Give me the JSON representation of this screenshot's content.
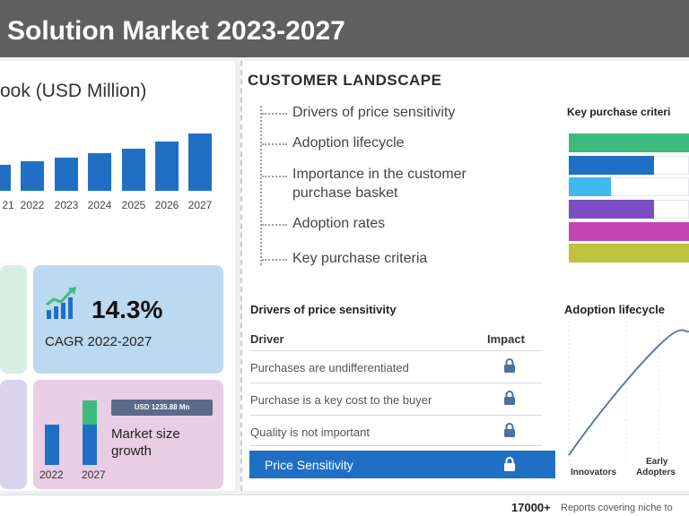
{
  "header": {
    "title": "Solution Market 2023-2027"
  },
  "outlook": {
    "title": "ook (USD Million)",
    "years": [
      "21",
      "2022",
      "2023",
      "2024",
      "2025",
      "2026",
      "2027"
    ],
    "relative_values": [
      0.46,
      0.52,
      0.58,
      0.66,
      0.74,
      0.86,
      1.0
    ]
  },
  "cagr": {
    "value": "14.3%",
    "label": "CAGR 2022-2027"
  },
  "growth": {
    "tag": "USD 1235.88 Mn",
    "label": "Market size growth",
    "years": [
      "2022",
      "2027"
    ],
    "base_2022": 0.62,
    "base_2027": 0.62,
    "increment_2027": 0.38
  },
  "customer_landscape": {
    "title": "CUSTOMER LANDSCAPE",
    "items": [
      "Drivers of price sensitivity",
      "Adoption lifecycle",
      "Importance in the customer purchase basket",
      "Adoption rates",
      "Key purchase criteria"
    ]
  },
  "key_purchase": {
    "title": "Key purchase criteri",
    "bars": [
      {
        "color": "#3dbb7c",
        "value": 1.0
      },
      {
        "color": "#1f6fc5",
        "value": 0.71
      },
      {
        "color": "#3fb9f0",
        "value": 0.35
      },
      {
        "color": "#7a4fc4",
        "value": 0.71
      },
      {
        "color": "#c545b3",
        "value": 1.0
      },
      {
        "color": "#bfc23c",
        "value": 1.0
      }
    ]
  },
  "drivers": {
    "title": "Drivers of price sensitivity",
    "col_driver": "Driver",
    "col_impact": "Impact",
    "rows": [
      "Purchases are undifferentiated",
      "Purchase is a key cost to the buyer",
      "Quality is not important"
    ],
    "highlight": "Price Sensitivity"
  },
  "adoption": {
    "title": "Adoption lifecycle",
    "labels": [
      "Innovators",
      "Early Adopters"
    ]
  },
  "footer": {
    "count": "17000+",
    "text": "Reports covering niche to"
  }
}
